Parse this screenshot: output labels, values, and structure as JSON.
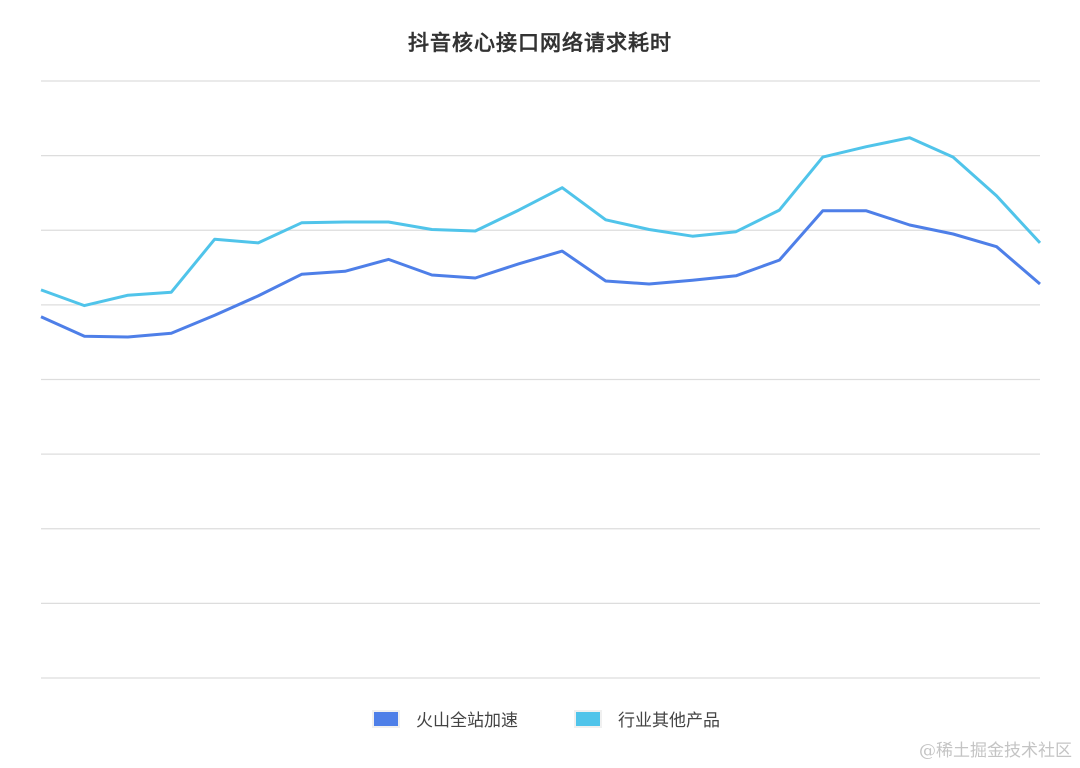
{
  "title": "抖音核心接口网络请求耗时",
  "legend": [
    {
      "label": "火山全站加速",
      "color": "#4e7fe8"
    },
    {
      "label": "行业其他产品",
      "color": "#50c4ea"
    }
  ],
  "watermark": "@稀土掘金技术社区",
  "colors": {
    "grid": "#dddddd",
    "series_1": "#4e7fe8",
    "series_2": "#50c4ea",
    "title": "#333333"
  },
  "chart_data": {
    "type": "line",
    "title": "抖音核心接口网络请求耗时",
    "xlabel": "",
    "ylabel": "",
    "note": "No axis tick labels are shown; values are on a relative scale where each horizontal gridline = 1 unit (bottom gridline = 0, top gridline = 8).",
    "x": [
      1,
      2,
      3,
      4,
      5,
      6,
      7,
      8,
      9,
      10,
      11,
      12,
      13,
      14,
      15,
      16,
      17,
      18,
      19,
      20,
      21,
      22,
      23,
      24
    ],
    "ylim": [
      0,
      8
    ],
    "grid": true,
    "gridlines": 9,
    "legend_position": "bottom",
    "series": [
      {
        "name": "火山全站加速",
        "color": "#4e7fe8",
        "values": [
          4.84,
          4.58,
          4.57,
          4.62,
          4.86,
          5.12,
          5.41,
          5.45,
          5.61,
          5.4,
          5.36,
          5.55,
          5.72,
          5.32,
          5.28,
          5.33,
          5.39,
          5.6,
          6.26,
          6.26,
          6.07,
          5.95,
          5.78,
          5.28
        ]
      },
      {
        "name": "行业其他产品",
        "color": "#50c4ea",
        "values": [
          5.2,
          4.99,
          5.13,
          5.17,
          5.88,
          5.83,
          6.1,
          6.11,
          6.11,
          6.01,
          5.99,
          6.27,
          6.57,
          6.14,
          6.01,
          5.92,
          5.98,
          6.27,
          6.98,
          7.12,
          7.24,
          6.98,
          6.46,
          5.83
        ]
      }
    ]
  }
}
